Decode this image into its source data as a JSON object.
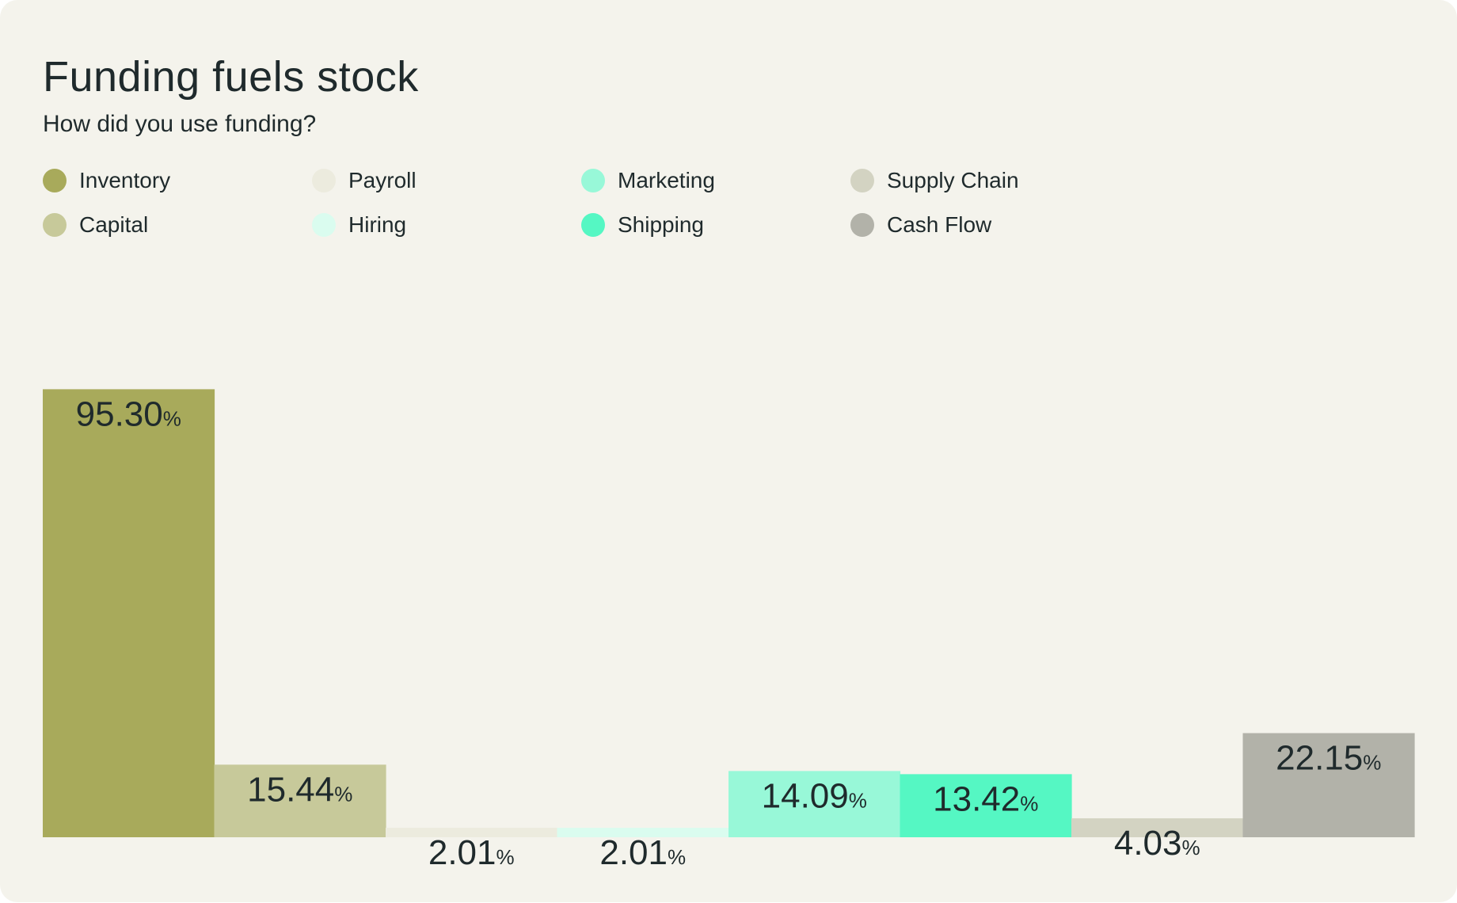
{
  "card": {
    "title": "Funding fuels stock",
    "subtitle": "How did you use funding?"
  },
  "legend": [
    {
      "label": "Inventory",
      "color": "#a8aa5b",
      "icon": "circle-swatch"
    },
    {
      "label": "Payroll",
      "color": "#ecebde",
      "icon": "circle-swatch"
    },
    {
      "label": "Marketing",
      "color": "#98f8d8",
      "icon": "circle-swatch"
    },
    {
      "label": "Supply Chain",
      "color": "#d3d3c2",
      "icon": "circle-swatch"
    },
    {
      "label": "Capital",
      "color": "#c7c99a",
      "icon": "circle-swatch"
    },
    {
      "label": "Hiring",
      "color": "#dafcef",
      "icon": "circle-swatch"
    },
    {
      "label": "Shipping",
      "color": "#55f7c3",
      "icon": "circle-swatch"
    },
    {
      "label": "Cash Flow",
      "color": "#b2b2a9",
      "icon": "circle-swatch"
    }
  ],
  "chart_data": {
    "type": "bar",
    "title": "Funding fuels stock",
    "subtitle": "How did you use funding?",
    "categories": [
      "Inventory",
      "Capital",
      "Payroll",
      "Hiring",
      "Marketing",
      "Shipping",
      "Supply Chain",
      "Cash Flow"
    ],
    "values": [
      95.3,
      15.44,
      2.01,
      2.01,
      14.09,
      13.42,
      4.03,
      22.15
    ],
    "value_labels": [
      "95.30",
      "15.44",
      "2.01",
      "2.01",
      "14.09",
      "13.42",
      "4.03",
      "22.15"
    ],
    "value_suffix": "%",
    "colors": [
      "#a8aa5b",
      "#c7c99a",
      "#ecebde",
      "#dafcef",
      "#98f8d8",
      "#55f7c3",
      "#d3d3c2",
      "#b2b2a9"
    ],
    "xlabel": "",
    "ylabel": "",
    "grid": false,
    "legend_position": "top-left"
  }
}
